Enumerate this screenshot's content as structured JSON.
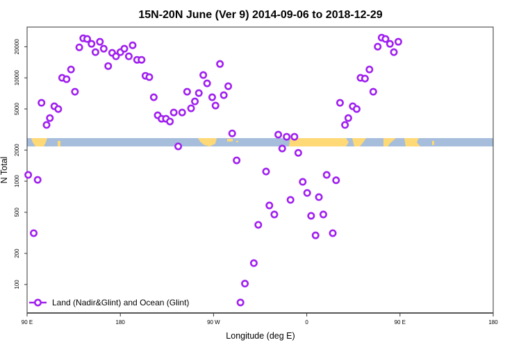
{
  "chart_data": {
    "type": "scatter",
    "title": "15N-20N June (Ver 9)   2014-09-06 to 2018-12-29",
    "xlabel": "Longitude (deg E)",
    "ylabel": "N Total",
    "x_note": "longitude unwrapped, 90 (90 E) to 450 (180 after wrapping past 0)",
    "xlim": [
      90,
      450
    ],
    "ylim": [
      53,
      31000
    ],
    "yscale": "log",
    "xticks": [
      {
        "value": 90,
        "label": "90 E"
      },
      {
        "value": 180,
        "label": "180"
      },
      {
        "value": 270,
        "label": "90 W"
      },
      {
        "value": 360,
        "label": "0"
      },
      {
        "value": 450,
        "label": "90 E"
      },
      {
        "value": 540,
        "label": "180"
      }
    ],
    "yticks": [
      {
        "value": 100,
        "label": "100"
      },
      {
        "value": 200,
        "label": "200"
      },
      {
        "value": 500,
        "label": "500"
      },
      {
        "value": 1000,
        "label": "1000"
      },
      {
        "value": 2000,
        "label": "2000"
      },
      {
        "value": 5000,
        "label": "5000"
      },
      {
        "value": 10000,
        "label": "10000"
      },
      {
        "value": 20000,
        "label": "20000"
      }
    ],
    "legend": {
      "position": "bottom-left",
      "entries": [
        {
          "label": "Land (Nadir&Glint) and Ocean (Glint)",
          "color": "#a020f0"
        }
      ]
    },
    "series": [
      {
        "name": "Land (Nadir&Glint) and Ocean (Glint)",
        "color": "#a020f0",
        "x": [
          91.1,
          96.4,
          100.2,
          103.9,
          108.8,
          112.0,
          116.3,
          120.1,
          123.8,
          128.1,
          132.4,
          136.2,
          140.4,
          144.2,
          148.0,
          152.2,
          156.0,
          160.3,
          164.0,
          168.3,
          172.1,
          175.8,
          180.1,
          183.9,
          188.2,
          191.9,
          196.2,
          200.5,
          204.3,
          208.0,
          212.3,
          216.1,
          219.8,
          224.1,
          227.9,
          231.6,
          235.9,
          239.7,
          244.5,
          248.3,
          252.0,
          255.8,
          260.1,
          263.8,
          268.7,
          271.9,
          276.2,
          279.9,
          284.2,
          288.0,
          292.3,
          296.0,
          300.3,
          308.9,
          313.2,
          320.7,
          323.9,
          328.7,
          332.5,
          336.3,
          340.6,
          344.3,
          348.1,
          351.8,
          356.1,
          360.4,
          364.2,
          368.5,
          371.7,
          376.0,
          379.2,
          385.1,
          388.3,
          392.1,
          396.9,
          400.1,
          404.4,
          408.2,
          411.9,
          416.2,
          420.5,
          424.2,
          428.5,
          432.3,
          436.0,
          440.3,
          444.1,
          448.4
        ],
        "y": [
          1150,
          314,
          1030,
          5730,
          3500,
          4080,
          5310,
          4990,
          10000,
          9700,
          12040,
          7340,
          19730,
          24140,
          23770,
          21330,
          17720,
          22340,
          19140,
          13000,
          17450,
          16150,
          17720,
          19140,
          16150,
          20660,
          14940,
          14940,
          10470,
          10160,
          6490,
          4340,
          4020,
          4020,
          3780,
          4620,
          2170,
          4620,
          7340,
          5070,
          5910,
          7120,
          10640,
          8840,
          6490,
          5390,
          13620,
          6800,
          8300,
          2900,
          1590,
          67,
          102,
          161,
          378,
          1240,
          582,
          476,
          2820,
          2070,
          2690,
          659,
          2690,
          1880,
          985,
          769,
          462,
          299,
          701,
          476,
          1150,
          314,
          1020,
          5730,
          3500,
          4080,
          5310,
          4990,
          10000,
          9840,
          12040,
          7340,
          20040,
          24500,
          23770,
          21330,
          17720,
          22340
        ]
      }
    ],
    "surface_strip": {
      "ocean_color": "#a6bddb",
      "land_color": "#fed976"
    }
  }
}
